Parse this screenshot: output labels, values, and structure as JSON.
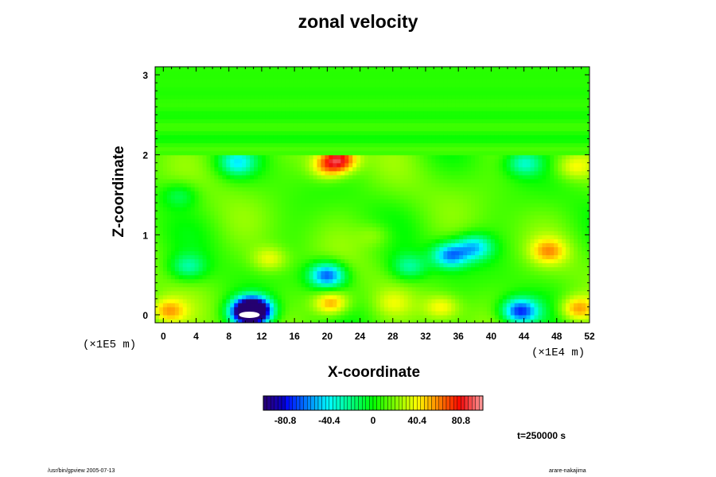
{
  "chart_data": {
    "type": "heatmap",
    "title": "zonal velocity",
    "xlabel": "X-coordinate",
    "ylabel": "Z-coordinate",
    "x_scale_note": "(×1E4 m)",
    "y_scale_note": "(×1E5 m)",
    "xlim": [
      -1,
      52
    ],
    "ylim": [
      -0.1,
      3.1
    ],
    "x_ticks": [
      "0",
      "4",
      "8",
      "12",
      "16",
      "20",
      "24",
      "28",
      "32",
      "36",
      "40",
      "44",
      "48",
      "52"
    ],
    "y_ticks": [
      "0",
      "1",
      "2",
      "3"
    ],
    "colorbar": {
      "range": [
        -101,
        101
      ],
      "tick_labels": [
        "-80.8",
        "-40.4",
        "0",
        "40.4",
        "80.8"
      ],
      "tick_values": [
        -80.8,
        -40.4,
        0,
        40.4,
        80.8
      ]
    },
    "features": [
      {
        "x": 11,
        "z": 0.07,
        "value": -95
      },
      {
        "x": 10.5,
        "z": 0.03,
        "value": -101
      },
      {
        "x": 20.5,
        "z": 0.15,
        "value": 60
      },
      {
        "x": 21.5,
        "z": 1.95,
        "value": 75
      },
      {
        "x": 20,
        "z": 1.85,
        "value": 45
      },
      {
        "x": 13,
        "z": 0.7,
        "value": 38
      },
      {
        "x": 20,
        "z": 0.5,
        "value": -70
      },
      {
        "x": 35,
        "z": 0.75,
        "value": -60
      },
      {
        "x": 38,
        "z": 0.85,
        "value": -45
      },
      {
        "x": 43.5,
        "z": 0.05,
        "value": -75
      },
      {
        "x": 50.5,
        "z": 0.08,
        "value": 55
      },
      {
        "x": 0.5,
        "z": 0.05,
        "value": 50
      },
      {
        "x": 9,
        "z": 1.9,
        "value": -35
      },
      {
        "x": 44,
        "z": 1.9,
        "value": -30
      },
      {
        "x": 50,
        "z": 1.85,
        "value": 35
      },
      {
        "x": 47,
        "z": 0.8,
        "value": 45
      },
      {
        "x": 34,
        "z": 0.1,
        "value": 40
      },
      {
        "x": 28,
        "z": 0.15,
        "value": 25
      },
      {
        "x": 30,
        "z": 0.6,
        "value": -25
      },
      {
        "x": 26,
        "z": 1.0,
        "value": 25
      },
      {
        "x": 3,
        "z": 0.6,
        "value": -25
      },
      {
        "x": 2,
        "z": 1.5,
        "value": -15
      }
    ],
    "grid": false,
    "legend": "bottom"
  },
  "time_label": "t=250000 s",
  "footer": {
    "left": "/usr/bin/gpview 2005-07-13",
    "right": "arare-nakajima"
  }
}
